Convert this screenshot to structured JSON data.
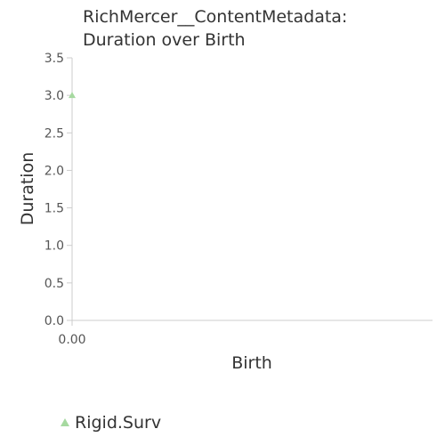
{
  "chart_data": {
    "type": "scatter",
    "title_lines": [
      "RichMercer__ContentMetadata:",
      "Duration over Birth"
    ],
    "xlabel": "Birth",
    "ylabel": "Duration",
    "ylim": [
      0,
      3.5
    ],
    "yticks": [
      "0.0",
      "0.5",
      "1.0",
      "1.5",
      "2.0",
      "2.5",
      "3.0",
      "3.5"
    ],
    "xticks": [
      "0.00"
    ],
    "grid": false,
    "legend_position": "bottom-left",
    "series": [
      {
        "name": "Rigid.Surv",
        "marker": "triangle",
        "color": "#a6d9a0",
        "points": [
          {
            "x": 0.0,
            "y": 3.0
          }
        ]
      }
    ]
  }
}
